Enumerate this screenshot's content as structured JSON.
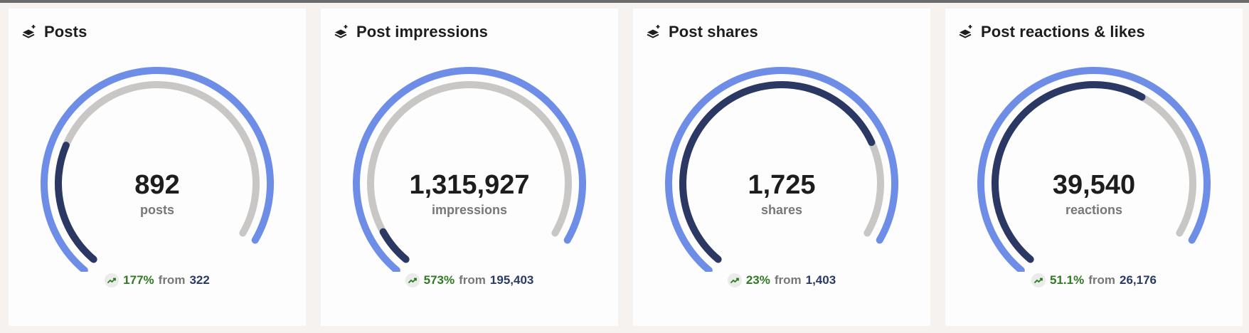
{
  "colors": {
    "outer_ring": "#6e8de6",
    "progress": "#2b3864",
    "track": "#c9c6c6",
    "positive": "#2f7a22",
    "previous_value": "#2a3a66"
  },
  "cards": [
    {
      "title": "Posts",
      "icon": "layers-icon",
      "value": "892",
      "unit": "posts",
      "progress": 0.28,
      "change_pct": "177%",
      "from_label": "from",
      "previous": "322"
    },
    {
      "title": "Post impressions",
      "icon": "layers-icon",
      "value": "1,315,927",
      "unit": "impressions",
      "progress": 0.08,
      "change_pct": "573%",
      "from_label": "from",
      "previous": "195,403"
    },
    {
      "title": "Post shares",
      "icon": "layers-icon",
      "value": "1,725",
      "unit": "shares",
      "progress": 0.79,
      "change_pct": "23%",
      "from_label": "from",
      "previous": "1,403"
    },
    {
      "title": "Post reactions & likes",
      "icon": "layers-icon",
      "value": "39,540",
      "unit": "reactions",
      "progress": 0.65,
      "change_pct": "51.1%",
      "from_label": "from",
      "previous": "26,176"
    }
  ]
}
